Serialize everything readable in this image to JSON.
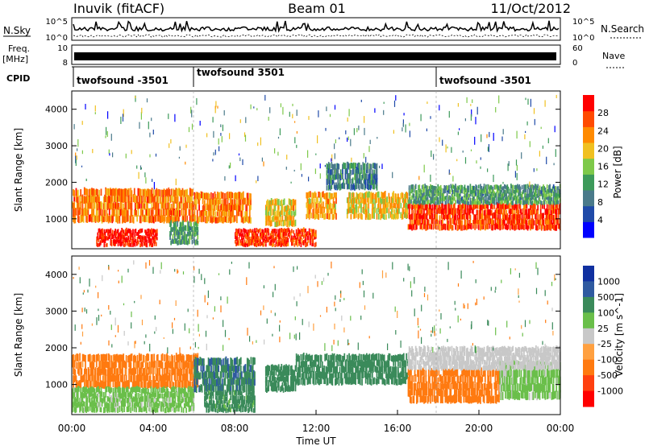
{
  "header": {
    "station": "Inuvik (fitACF)",
    "beam": "Beam 01",
    "date": "11/Oct/2012"
  },
  "summary_panels": {
    "nsky_label": "N.Sky",
    "nsky_tick_top": "10^5",
    "nsky_tick_bottom": "10^0",
    "nsearch_label": "N.Search",
    "nsearch_tick_top": "10^5",
    "nsearch_tick_bottom": "10^0",
    "freq_label": "Freq.",
    "freq_unit": "[MHz]",
    "freq_tick_top": "10",
    "freq_tick_bottom": "8",
    "nave_label": "Nave",
    "nave_tick_top": "60",
    "nave_tick_bottom": "0",
    "cpid_label": "CPID",
    "cpid_segments": [
      {
        "label": "twofsound -3501",
        "start_hour": 0
      },
      {
        "label": "twofsound 3501",
        "start_hour": 6
      },
      {
        "label": "twofsound -3501",
        "start_hour": 18
      }
    ]
  },
  "colors": {
    "power_scale": [
      "#0000ff",
      "#1f4aa8",
      "#4a7a8a",
      "#3d9a5a",
      "#7ec94a",
      "#f0c020",
      "#ff8a00",
      "#ff4a00",
      "#ff0000"
    ],
    "velocity_scale": [
      "#1030a0",
      "#2f5aa0",
      "#3a8a5a",
      "#6abf4a",
      "#c8c8c8",
      "#ffa040",
      "#ff7a10",
      "#ff4010",
      "#ff0000"
    ]
  },
  "chart_data": [
    {
      "type": "heatmap",
      "panel": "power",
      "ylabel": "Slant Range [km]",
      "xlabel": "Time UT",
      "x_ticks": [
        "00:00",
        "04:00",
        "08:00",
        "12:00",
        "16:00",
        "20:00",
        "00:00"
      ],
      "xlim_hours": [
        0,
        24
      ],
      "y_ticks": [
        1000,
        2000,
        3000,
        4000
      ],
      "ylim": [
        180,
        4500
      ],
      "colorbar_label": "Power [dB]",
      "colorbar_ticks": [
        4,
        8,
        12,
        16,
        20,
        24,
        28
      ],
      "colorbar_range": [
        0,
        32
      ],
      "regions": [
        {
          "t0": 0.0,
          "t1": 6.0,
          "r0": 900,
          "r1": 1800,
          "level": 24
        },
        {
          "t0": 1.2,
          "t1": 4.2,
          "r0": 250,
          "r1": 700,
          "level": 30
        },
        {
          "t0": 4.8,
          "t1": 6.2,
          "r0": 300,
          "r1": 900,
          "level": 12
        },
        {
          "t0": 6.0,
          "t1": 8.8,
          "r0": 900,
          "r1": 1700,
          "level": 24
        },
        {
          "t0": 8.0,
          "t1": 12.0,
          "r0": 250,
          "r1": 700,
          "level": 28
        },
        {
          "t0": 9.5,
          "t1": 11.0,
          "r0": 800,
          "r1": 1500,
          "level": 20
        },
        {
          "t0": 11.5,
          "t1": 13.0,
          "r0": 1000,
          "r1": 1700,
          "level": 22
        },
        {
          "t0": 13.5,
          "t1": 16.5,
          "r0": 1000,
          "r1": 1700,
          "level": 20
        },
        {
          "t0": 12.5,
          "t1": 15.0,
          "r0": 1800,
          "r1": 2500,
          "level": 10
        },
        {
          "t0": 16.5,
          "t1": 24.0,
          "r0": 700,
          "r1": 1400,
          "level": 28
        },
        {
          "t0": 16.5,
          "t1": 24.0,
          "r0": 1400,
          "r1": 1900,
          "level": 12
        }
      ]
    },
    {
      "type": "heatmap",
      "panel": "velocity",
      "ylabel": "Slant Range [km]",
      "xlabel": "Time UT",
      "x_ticks": [
        "00:00",
        "04:00",
        "08:00",
        "12:00",
        "16:00",
        "20:00",
        "00:00"
      ],
      "xlim_hours": [
        0,
        24
      ],
      "y_ticks": [
        1000,
        2000,
        3000,
        4000
      ],
      "ylim": [
        180,
        4500
      ],
      "colorbar_label": "Velocity [m s^-1]",
      "colorbar_ticks": [
        "1000",
        "500",
        "100",
        "25",
        "-25",
        "-100",
        "-500",
        "-1000"
      ],
      "regions": [
        {
          "t0": 0.0,
          "t1": 6.2,
          "r0": 900,
          "r1": 1800,
          "level": -200
        },
        {
          "t0": 0.0,
          "t1": 6.0,
          "r0": 250,
          "r1": 900,
          "level": 50
        },
        {
          "t0": 6.0,
          "t1": 9.0,
          "r0": 800,
          "r1": 1700,
          "level": 400
        },
        {
          "t0": 6.5,
          "t1": 9.0,
          "r0": 250,
          "r1": 800,
          "level": 200
        },
        {
          "t0": 9.5,
          "t1": 11.0,
          "r0": 800,
          "r1": 1500,
          "level": 300
        },
        {
          "t0": 11.0,
          "t1": 16.5,
          "r0": 1000,
          "r1": 1800,
          "level": 250
        },
        {
          "t0": 16.5,
          "t1": 21.0,
          "r0": 500,
          "r1": 1400,
          "level": -300
        },
        {
          "t0": 21.0,
          "t1": 24.0,
          "r0": 600,
          "r1": 1600,
          "level": 40
        },
        {
          "t0": 16.5,
          "t1": 24.0,
          "r0": 1400,
          "r1": 2000,
          "level": 10
        }
      ]
    }
  ]
}
